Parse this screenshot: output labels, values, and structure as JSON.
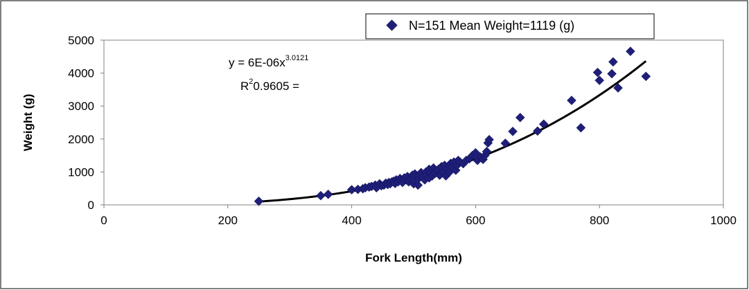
{
  "chart_data": {
    "type": "scatter",
    "xlabel": "Fork Length(mm)",
    "ylabel": "Weight (g)",
    "xlim": [
      0,
      1000
    ],
    "ylim": [
      0,
      5000
    ],
    "xticks": [
      0,
      200,
      400,
      600,
      800,
      1000
    ],
    "yticks": [
      0,
      1000,
      2000,
      3000,
      4000,
      5000
    ],
    "grid": false,
    "legend_position": "top-right",
    "colors": {
      "marker": "#1f1f7a",
      "trendline": "#000000"
    },
    "series": [
      {
        "name": "N=151 Mean Weight=1119 (g)",
        "points": [
          [
            250,
            110
          ],
          [
            350,
            280
          ],
          [
            362,
            320
          ],
          [
            400,
            460
          ],
          [
            410,
            470
          ],
          [
            418,
            490
          ],
          [
            422,
            520
          ],
          [
            428,
            540
          ],
          [
            432,
            560
          ],
          [
            438,
            600
          ],
          [
            440,
            520
          ],
          [
            445,
            640
          ],
          [
            448,
            580
          ],
          [
            452,
            600
          ],
          [
            455,
            660
          ],
          [
            458,
            620
          ],
          [
            460,
            680
          ],
          [
            462,
            640
          ],
          [
            465,
            700
          ],
          [
            468,
            720
          ],
          [
            470,
            650
          ],
          [
            472,
            760
          ],
          [
            475,
            700
          ],
          [
            478,
            800
          ],
          [
            480,
            740
          ],
          [
            482,
            680
          ],
          [
            485,
            820
          ],
          [
            488,
            760
          ],
          [
            490,
            860
          ],
          [
            492,
            700
          ],
          [
            495,
            800
          ],
          [
            498,
            900
          ],
          [
            500,
            640
          ],
          [
            500,
            760
          ],
          [
            502,
            940
          ],
          [
            505,
            860
          ],
          [
            507,
            600
          ],
          [
            508,
            800
          ],
          [
            510,
            900
          ],
          [
            512,
            980
          ],
          [
            515,
            840
          ],
          [
            518,
            760
          ],
          [
            520,
            1000
          ],
          [
            522,
            900
          ],
          [
            525,
            1080
          ],
          [
            525,
            820
          ],
          [
            528,
            960
          ],
          [
            530,
            880
          ],
          [
            532,
            1120
          ],
          [
            535,
            960
          ],
          [
            538,
            1040
          ],
          [
            540,
            1080
          ],
          [
            542,
            900
          ],
          [
            545,
            1160
          ],
          [
            548,
            1000
          ],
          [
            550,
            1200
          ],
          [
            552,
            880
          ],
          [
            555,
            1100
          ],
          [
            558,
            1000
          ],
          [
            560,
            1260
          ],
          [
            562,
            1150
          ],
          [
            565,
            1300
          ],
          [
            568,
            1050
          ],
          [
            570,
            1200
          ],
          [
            572,
            1350
          ],
          [
            575,
            1300
          ],
          [
            580,
            1250
          ],
          [
            585,
            1350
          ],
          [
            590,
            1400
          ],
          [
            595,
            1500
          ],
          [
            600,
            1580
          ],
          [
            603,
            1350
          ],
          [
            608,
            1450
          ],
          [
            612,
            1380
          ],
          [
            615,
            1500
          ],
          [
            618,
            1620
          ],
          [
            620,
            1880
          ],
          [
            622,
            1980
          ],
          [
            648,
            1870
          ],
          [
            660,
            2230
          ],
          [
            672,
            2650
          ],
          [
            700,
            2240
          ],
          [
            710,
            2450
          ],
          [
            755,
            3170
          ],
          [
            770,
            2340
          ],
          [
            797,
            4020
          ],
          [
            800,
            3780
          ],
          [
            820,
            3980
          ],
          [
            822,
            4340
          ],
          [
            830,
            3550
          ],
          [
            850,
            4660
          ],
          [
            875,
            3900
          ]
        ]
      }
    ],
    "trendline": {
      "type": "power",
      "coefficient": 6e-06,
      "exponent": 3.0121,
      "x_range": [
        250,
        875
      ]
    },
    "annotations": {
      "equation_prefix": "y = 6E-06x",
      "equation_exponent": "3.0121",
      "r2_prefix": "R",
      "r2_sup": "2",
      "r2_value": "0.9605 ="
    }
  }
}
